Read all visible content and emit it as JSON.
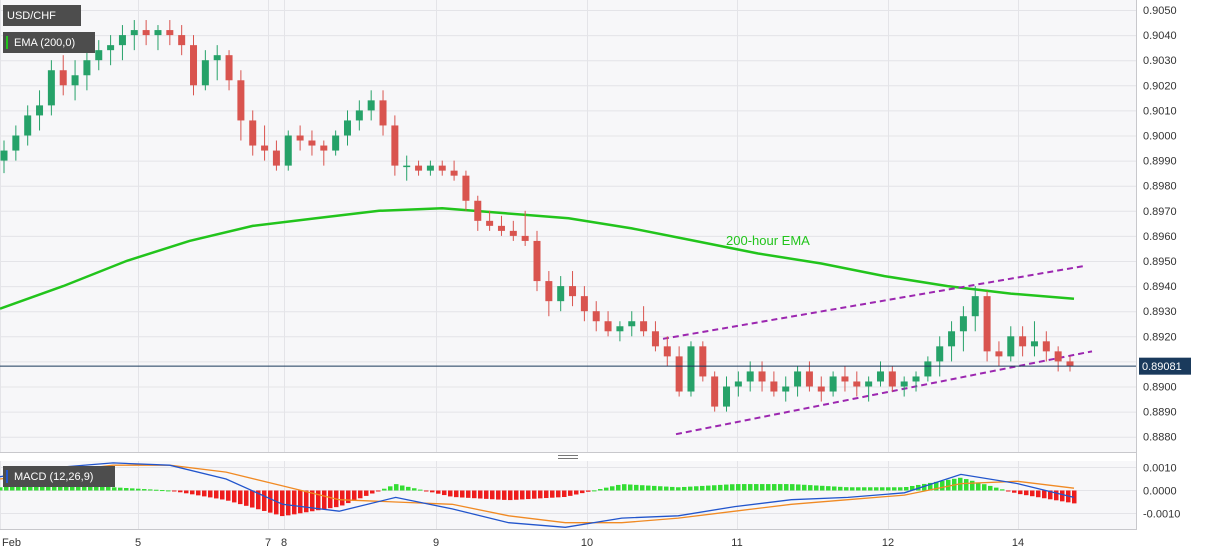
{
  "chart_data": [
    {
      "type": "candlestick",
      "symbol": "USD/CHF",
      "indicator_label": "EMA (200,0)",
      "annotation": "200-hour EMA",
      "last_price": "0.89081",
      "last_price_value": 0.89081,
      "ylim": [
        0.8873,
        0.9052
      ],
      "y_ticks": [
        "0.9050",
        "0.9040",
        "0.9030",
        "0.9020",
        "0.9010",
        "0.9000",
        "0.8990",
        "0.8980",
        "0.8970",
        "0.8960",
        "0.8950",
        "0.8940",
        "0.8930",
        "0.8920",
        "0.8910",
        "0.8900",
        "0.8890",
        "0.8880"
      ],
      "x_ticks": [
        "Feb",
        "5",
        "7",
        "8",
        "9",
        "10",
        "11",
        "12",
        "14"
      ],
      "colors": {
        "up": "#26a269",
        "down": "#d9544f",
        "ema": "#22c41c",
        "channel": "#9c27b0",
        "price_line": "#1a3a5c",
        "tag": "#4d4d4d"
      },
      "grid": true,
      "candles": [
        [
          0.899,
          0.8998,
          0.8985,
          0.8994
        ],
        [
          0.8994,
          0.9004,
          0.899,
          0.9
        ],
        [
          0.9,
          0.9012,
          0.8996,
          0.9008
        ],
        [
          0.9008,
          0.9018,
          0.9002,
          0.9012
        ],
        [
          0.9012,
          0.903,
          0.9008,
          0.9026
        ],
        [
          0.9026,
          0.9032,
          0.9016,
          0.902
        ],
        [
          0.902,
          0.903,
          0.9014,
          0.9024
        ],
        [
          0.9024,
          0.9034,
          0.9018,
          0.903
        ],
        [
          0.903,
          0.9038,
          0.9026,
          0.9034
        ],
        [
          0.9034,
          0.904,
          0.9028,
          0.9036
        ],
        [
          0.9036,
          0.9044,
          0.903,
          0.904
        ],
        [
          0.904,
          0.9046,
          0.9034,
          0.9042
        ],
        [
          0.9042,
          0.9046,
          0.9036,
          0.904
        ],
        [
          0.904,
          0.9044,
          0.9034,
          0.9042
        ],
        [
          0.9042,
          0.9046,
          0.9036,
          0.904
        ],
        [
          0.904,
          0.9044,
          0.9032,
          0.9036
        ],
        [
          0.9036,
          0.904,
          0.9016,
          0.902
        ],
        [
          0.902,
          0.9034,
          0.9018,
          0.903
        ],
        [
          0.903,
          0.9036,
          0.9022,
          0.9032
        ],
        [
          0.9032,
          0.9034,
          0.9018,
          0.9022
        ],
        [
          0.9022,
          0.9026,
          0.8998,
          0.9006
        ],
        [
          0.9006,
          0.901,
          0.8992,
          0.8996
        ],
        [
          0.8996,
          0.9004,
          0.899,
          0.8994
        ],
        [
          0.8994,
          0.8998,
          0.8986,
          0.8988
        ],
        [
          0.8988,
          0.9002,
          0.8986,
          0.9
        ],
        [
          0.9,
          0.9004,
          0.8994,
          0.8998
        ],
        [
          0.8998,
          0.9002,
          0.8992,
          0.8996
        ],
        [
          0.8996,
          0.8998,
          0.8988,
          0.8994
        ],
        [
          0.8994,
          0.9002,
          0.8992,
          0.9
        ],
        [
          0.9,
          0.901,
          0.8996,
          0.9006
        ],
        [
          0.9006,
          0.9014,
          0.9002,
          0.901
        ],
        [
          0.901,
          0.9018,
          0.9006,
          0.9014
        ],
        [
          0.9014,
          0.9018,
          0.9,
          0.9004
        ],
        [
          0.9004,
          0.9008,
          0.8984,
          0.8988
        ],
        [
          0.8988,
          0.8992,
          0.8982,
          0.8988
        ],
        [
          0.8988,
          0.899,
          0.8984,
          0.8986
        ],
        [
          0.8986,
          0.899,
          0.8984,
          0.8988
        ],
        [
          0.8988,
          0.899,
          0.8984,
          0.8986
        ],
        [
          0.8986,
          0.899,
          0.8982,
          0.8984
        ],
        [
          0.8984,
          0.8986,
          0.897,
          0.8974
        ],
        [
          0.8974,
          0.8976,
          0.8962,
          0.8966
        ],
        [
          0.8966,
          0.897,
          0.8962,
          0.8964
        ],
        [
          0.8964,
          0.8968,
          0.896,
          0.8962
        ],
        [
          0.8962,
          0.8966,
          0.8958,
          0.896
        ],
        [
          0.896,
          0.897,
          0.8956,
          0.8958
        ],
        [
          0.8958,
          0.8962,
          0.8938,
          0.8942
        ],
        [
          0.8942,
          0.8946,
          0.8928,
          0.8934
        ],
        [
          0.8934,
          0.8944,
          0.893,
          0.894
        ],
        [
          0.894,
          0.8946,
          0.8932,
          0.8936
        ],
        [
          0.8936,
          0.894,
          0.8926,
          0.893
        ],
        [
          0.893,
          0.8934,
          0.8922,
          0.8926
        ],
        [
          0.8926,
          0.893,
          0.892,
          0.8922
        ],
        [
          0.8922,
          0.8926,
          0.8918,
          0.8924
        ],
        [
          0.8924,
          0.893,
          0.892,
          0.8926
        ],
        [
          0.8926,
          0.8932,
          0.892,
          0.8922
        ],
        [
          0.8922,
          0.8926,
          0.8914,
          0.8916
        ],
        [
          0.8916,
          0.892,
          0.8908,
          0.8912
        ],
        [
          0.8912,
          0.8916,
          0.8896,
          0.8898
        ],
        [
          0.8898,
          0.8918,
          0.8896,
          0.8916
        ],
        [
          0.8916,
          0.8918,
          0.8902,
          0.8904
        ],
        [
          0.8904,
          0.8906,
          0.889,
          0.8892
        ],
        [
          0.8892,
          0.8904,
          0.889,
          0.89
        ],
        [
          0.89,
          0.8906,
          0.8896,
          0.8902
        ],
        [
          0.8902,
          0.891,
          0.8898,
          0.8906
        ],
        [
          0.8906,
          0.891,
          0.8898,
          0.8902
        ],
        [
          0.8902,
          0.8906,
          0.8896,
          0.8898
        ],
        [
          0.8898,
          0.8904,
          0.8894,
          0.89
        ],
        [
          0.89,
          0.8908,
          0.8896,
          0.8906
        ],
        [
          0.8906,
          0.891,
          0.8898,
          0.89
        ],
        [
          0.89,
          0.8904,
          0.8894,
          0.8898
        ],
        [
          0.8898,
          0.8906,
          0.8896,
          0.8904
        ],
        [
          0.8904,
          0.8908,
          0.8898,
          0.8902
        ],
        [
          0.8902,
          0.8906,
          0.8896,
          0.89
        ],
        [
          0.89,
          0.8904,
          0.8894,
          0.8902
        ],
        [
          0.8902,
          0.891,
          0.89,
          0.8906
        ],
        [
          0.8906,
          0.8908,
          0.8898,
          0.89
        ],
        [
          0.89,
          0.8904,
          0.8896,
          0.8902
        ],
        [
          0.8902,
          0.8906,
          0.8898,
          0.8904
        ],
        [
          0.8904,
          0.8912,
          0.8902,
          0.891
        ],
        [
          0.891,
          0.892,
          0.8904,
          0.8916
        ],
        [
          0.8916,
          0.8926,
          0.891,
          0.8922
        ],
        [
          0.8922,
          0.8932,
          0.8914,
          0.8928
        ],
        [
          0.8928,
          0.894,
          0.8922,
          0.8936
        ],
        [
          0.8936,
          0.8938,
          0.891,
          0.8914
        ],
        [
          0.8914,
          0.8918,
          0.8908,
          0.8912
        ],
        [
          0.8912,
          0.8924,
          0.891,
          0.892
        ],
        [
          0.892,
          0.8924,
          0.8912,
          0.8916
        ],
        [
          0.8916,
          0.8926,
          0.8912,
          0.8918
        ],
        [
          0.8918,
          0.8922,
          0.891,
          0.8914
        ],
        [
          0.8914,
          0.8916,
          0.8906,
          0.891
        ],
        [
          0.891,
          0.8912,
          0.8906,
          0.8908
        ]
      ],
      "ema_200": [
        0.8931,
        0.894,
        0.895,
        0.8958,
        0.8964,
        0.8967,
        0.897,
        0.8971,
        0.8969,
        0.8967,
        0.8963,
        0.8958,
        0.8953,
        0.8949,
        0.8944,
        0.894,
        0.8937,
        0.8935
      ],
      "channel_upper": [
        [
          0.8919,
          0.8948
        ]
      ],
      "channel_lower": [
        [
          0.8881,
          0.8914
        ]
      ]
    },
    {
      "type": "macd",
      "label": "MACD (12,26,9)",
      "ylim": [
        -0.0015,
        0.0013
      ],
      "y_ticks": [
        "0.0010",
        "0.0000",
        "-0.0010"
      ],
      "macd": [
        0.0006,
        0.001,
        0.0012,
        0.0011,
        0.0005,
        -0.0006,
        -0.0009,
        -0.0003,
        -0.0008,
        -0.0014,
        -0.0016,
        -0.0012,
        -0.0011,
        -0.0007,
        -0.0004,
        -0.0003,
        -0.0001,
        0.0007,
        0.0003,
        -0.0003
      ],
      "signal": [
        0.0005,
        0.0008,
        0.0011,
        0.0011,
        0.0008,
        0.0002,
        -0.0004,
        -0.0005,
        -0.0006,
        -0.0011,
        -0.0014,
        -0.0014,
        -0.0012,
        -0.0009,
        -0.0006,
        -0.0004,
        -0.0002,
        0.0003,
        0.0004,
        0.0001
      ],
      "colors": {
        "macd": "#2255cc",
        "signal": "#f08a24",
        "hist_up": "#33dd33",
        "hist_down": "#ee1c1c"
      }
    }
  ]
}
